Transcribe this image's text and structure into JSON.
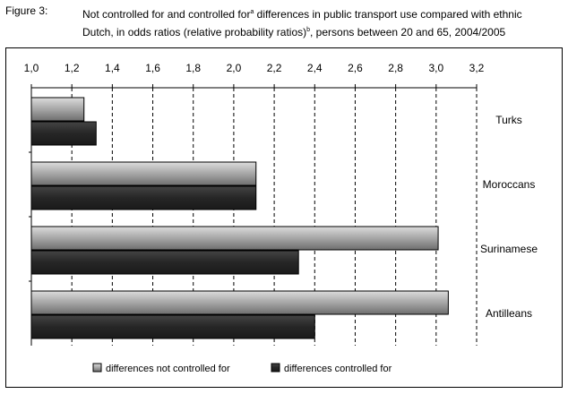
{
  "caption": {
    "label": "Figure 3:",
    "line1": "Not controlled for and controlled for",
    "sup1": "a",
    "line1b": " differences in public transport use compared with ethnic",
    "line2": "Dutch, in odds ratios (relative probability ratios)",
    "sup2": "b",
    "line2b": ", persons between 20 and 65, 2004/2005"
  },
  "chart_data": {
    "type": "bar",
    "orientation": "horizontal",
    "categories": [
      "Turks",
      "Moroccans",
      "Surinamese",
      "Antilleans"
    ],
    "series": [
      {
        "name": "differences not controlled for",
        "values": [
          1.26,
          2.11,
          3.01,
          3.06
        ]
      },
      {
        "name": "differences controlled for",
        "values": [
          1.32,
          2.11,
          2.32,
          2.4
        ]
      }
    ],
    "xlim": [
      1.0,
      3.2
    ],
    "xticks": [
      "1,0",
      "1,2",
      "1,4",
      "1,6",
      "1,8",
      "2,0",
      "2,2",
      "2,4",
      "2,6",
      "2,8",
      "3,0",
      "3,2"
    ],
    "xtick_values": [
      1.0,
      1.2,
      1.4,
      1.6,
      1.8,
      2.0,
      2.2,
      2.4,
      2.6,
      2.8,
      3.0,
      3.2
    ],
    "axis_position": "top",
    "grid": "vertical dashed",
    "legend_placement": "bottom",
    "colors": {
      "not_controlled": "#a8a8a8",
      "controlled": "#2e2e2e"
    }
  }
}
